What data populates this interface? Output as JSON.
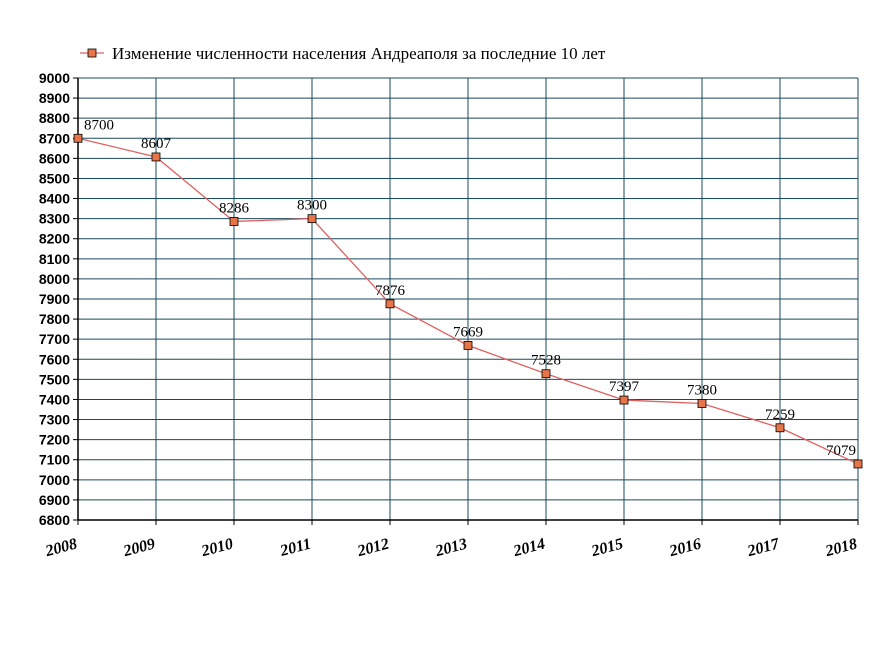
{
  "chart_data": {
    "type": "line",
    "title": "",
    "xlabel": "",
    "ylabel": "",
    "categories": [
      "2008",
      "2009",
      "2010",
      "2011",
      "2012",
      "2013",
      "2014",
      "2015",
      "2016",
      "2017",
      "2018"
    ],
    "series": [
      {
        "name": "Изменение численности населения Андреаполя за последние 10 лет",
        "values": [
          8700,
          8607,
          8286,
          8300,
          7876,
          7669,
          7528,
          7397,
          7380,
          7259,
          7079
        ]
      }
    ],
    "ylim": [
      6800,
      9000
    ],
    "ystep": 100,
    "grid": true,
    "legend": "top",
    "colors": {
      "line": "#e06060",
      "marker_fill": "#e8744a",
      "marker_stroke": "#000000",
      "grid": "#1a4a5e",
      "axis": "#000000"
    }
  }
}
